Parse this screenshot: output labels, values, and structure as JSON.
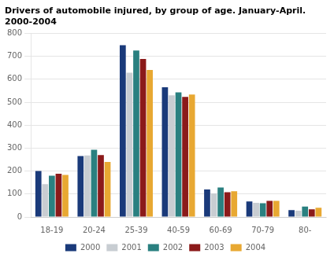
{
  "chart_data": {
    "type": "bar",
    "title": "Drivers of automobile injured, by group of age. January-April.\n2000-2004",
    "categories": [
      "18-19",
      "20-24",
      "25-39",
      "40-59",
      "60-69",
      "70-79",
      "80-"
    ],
    "series": [
      {
        "name": "2000",
        "color": "#1a3a7a",
        "values": [
          200,
          265,
          748,
          565,
          120,
          68,
          30
        ]
      },
      {
        "name": "2001",
        "color": "#c8cdd2",
        "values": [
          143,
          268,
          628,
          530,
          103,
          62,
          27
        ]
      },
      {
        "name": "2002",
        "color": "#2a8080",
        "values": [
          180,
          293,
          725,
          543,
          128,
          60,
          45
        ]
      },
      {
        "name": "2003",
        "color": "#8b1a1a",
        "values": [
          188,
          270,
          688,
          523,
          108,
          70,
          33
        ]
      },
      {
        "name": "2004",
        "color": "#e8a832",
        "values": [
          183,
          240,
          640,
          533,
          112,
          70,
          40
        ]
      }
    ],
    "ylim": [
      0,
      800
    ],
    "yticks": [
      0,
      100,
      200,
      300,
      400,
      500,
      600,
      700,
      800
    ],
    "grid": true,
    "legend": "bottom"
  }
}
